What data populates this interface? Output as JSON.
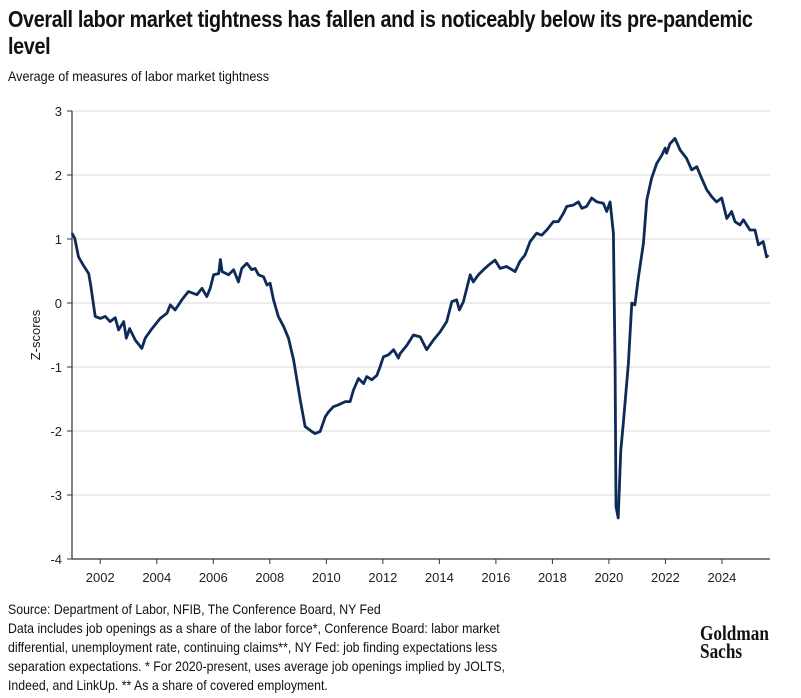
{
  "chart_data": {
    "type": "line",
    "title": "Overall labor market tightness has fallen and is noticeably below its pre-pandemic level",
    "subtitle": "Average of measures of labor market tightness",
    "xlabel": "",
    "ylabel": "Z-scores",
    "xlim": [
      2001.0,
      2025.7
    ],
    "ylim": [
      -4,
      3
    ],
    "x_ticks": [
      "2002",
      "2004",
      "2006",
      "2008",
      "2010",
      "2012",
      "2014",
      "2016",
      "2018",
      "2020",
      "2022",
      "2024"
    ],
    "y_ticks": [
      "3",
      "2",
      "1",
      "0",
      "-1",
      "-2",
      "-3",
      "-4"
    ],
    "grid": "horizontal",
    "line_color": "#0e2b58",
    "series": [
      {
        "x": [
          2001.0,
          2001.1,
          2001.23,
          2001.4,
          2001.59,
          2001.67,
          2001.82,
          2002.0,
          2002.18,
          2002.35,
          2002.53,
          2002.65,
          2002.83,
          2002.92,
          2003.04,
          2003.24,
          2003.47,
          2003.59,
          2003.83,
          2004.12,
          2004.36,
          2004.48,
          2004.65,
          2004.89,
          2005.12,
          2005.42,
          2005.6,
          2005.77,
          2005.89,
          2006.01,
          2006.19,
          2006.25,
          2006.31,
          2006.54,
          2006.72,
          2006.89,
          2007.01,
          2007.19,
          2007.36,
          2007.48,
          2007.6,
          2007.78,
          2007.9,
          2008.01,
          2008.13,
          2008.3,
          2008.49,
          2008.66,
          2008.84,
          2009.08,
          2009.25,
          2009.49,
          2009.6,
          2009.78,
          2009.96,
          2010.08,
          2010.25,
          2010.43,
          2010.67,
          2010.84,
          2010.96,
          2011.14,
          2011.32,
          2011.43,
          2011.61,
          2011.79,
          2011.9,
          2012.02,
          2012.2,
          2012.38,
          2012.55,
          2012.61,
          2012.85,
          2013.08,
          2013.32,
          2013.55,
          2013.79,
          2014.03,
          2014.26,
          2014.44,
          2014.61,
          2014.71,
          2014.85,
          2015.09,
          2015.2,
          2015.38,
          2015.56,
          2015.74,
          2015.97,
          2016.15,
          2016.38,
          2016.68,
          2016.85,
          2017.03,
          2017.21,
          2017.44,
          2017.62,
          2017.8,
          2018.03,
          2018.21,
          2018.39,
          2018.51,
          2018.74,
          2018.92,
          2019.04,
          2019.21,
          2019.39,
          2019.57,
          2019.8,
          2019.92,
          2020.04,
          2020.16,
          2020.22,
          2020.25,
          2020.33,
          2020.42,
          2020.51,
          2020.69,
          2020.81,
          2020.92,
          2021.04,
          2021.22,
          2021.34,
          2021.51,
          2021.69,
          2021.87,
          2021.99,
          2022.04,
          2022.16,
          2022.34,
          2022.52,
          2022.75,
          2022.93,
          2023.11,
          2023.28,
          2023.46,
          2023.64,
          2023.81,
          2023.99,
          2024.17,
          2024.34,
          2024.46,
          2024.64,
          2024.76,
          2024.99,
          2025.17,
          2025.29,
          2025.46,
          2025.58,
          2025.64
        ],
        "y": [
          1.09,
          1.01,
          0.72,
          0.59,
          0.46,
          0.26,
          -0.21,
          -0.24,
          -0.21,
          -0.29,
          -0.23,
          -0.42,
          -0.29,
          -0.55,
          -0.4,
          -0.58,
          -0.71,
          -0.55,
          -0.4,
          -0.24,
          -0.16,
          -0.03,
          -0.11,
          0.05,
          0.18,
          0.13,
          0.23,
          0.1,
          0.23,
          0.44,
          0.46,
          0.68,
          0.49,
          0.44,
          0.52,
          0.33,
          0.54,
          0.62,
          0.52,
          0.54,
          0.44,
          0.41,
          0.28,
          0.31,
          0.05,
          -0.21,
          -0.37,
          -0.55,
          -0.89,
          -1.52,
          -1.93,
          -2.01,
          -2.04,
          -2.01,
          -1.78,
          -1.7,
          -1.62,
          -1.59,
          -1.54,
          -1.54,
          -1.36,
          -1.18,
          -1.26,
          -1.15,
          -1.2,
          -1.13,
          -1.0,
          -0.84,
          -0.81,
          -0.73,
          -0.86,
          -0.79,
          -0.66,
          -0.5,
          -0.53,
          -0.73,
          -0.58,
          -0.45,
          -0.29,
          0.02,
          0.05,
          -0.11,
          0.02,
          0.44,
          0.33,
          0.44,
          0.52,
          0.59,
          0.67,
          0.54,
          0.57,
          0.49,
          0.65,
          0.75,
          0.96,
          1.09,
          1.06,
          1.14,
          1.27,
          1.27,
          1.4,
          1.51,
          1.53,
          1.58,
          1.48,
          1.51,
          1.64,
          1.58,
          1.56,
          1.43,
          1.58,
          1.09,
          -1.0,
          -3.18,
          -3.36,
          -2.3,
          -1.88,
          -0.94,
          0.0,
          -0.03,
          0.39,
          0.93,
          1.61,
          1.95,
          2.18,
          2.31,
          2.42,
          2.34,
          2.49,
          2.57,
          2.39,
          2.26,
          2.08,
          2.13,
          1.95,
          1.77,
          1.66,
          1.58,
          1.64,
          1.32,
          1.43,
          1.27,
          1.22,
          1.3,
          1.14,
          1.14,
          0.91,
          0.96,
          0.72,
          0.75
        ]
      }
    ]
  },
  "footnotes": {
    "source": "Source: Department of Labor, NFIB, The Conference Board, NY Fed",
    "lines": [
      "Data includes job openings as a share of the labor force*, Conference Board: labor market",
      "differential, unemployment rate, continuing claims**, NY Fed: job finding expectations less",
      "separation expectations. * For 2020-present, uses average job openings implied by JOLTS,",
      "Indeed, and LinkUp. ** As a share of covered employment."
    ]
  },
  "logo": {
    "line1": "Goldman",
    "line2": "Sachs"
  }
}
